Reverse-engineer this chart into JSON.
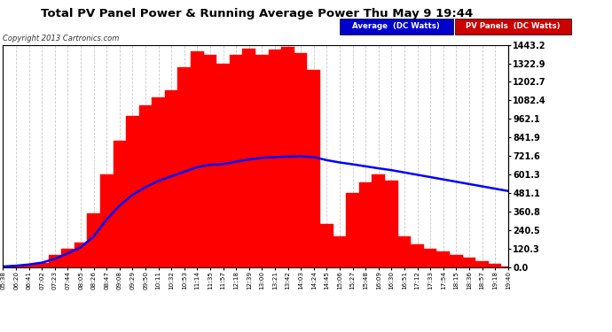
{
  "title": "Total PV Panel Power & Running Average Power Thu May 9 19:44",
  "copyright": "Copyright 2013 Cartronics.com",
  "yticks": [
    0.0,
    120.3,
    240.5,
    360.8,
    481.1,
    601.3,
    721.6,
    841.9,
    962.1,
    1082.4,
    1202.7,
    1322.9,
    1443.2
  ],
  "ymax": 1443.2,
  "bg_color": "#ffffff",
  "grid_color": "#bbbbbb",
  "pv_color": "#ff0000",
  "avg_color": "#0000ff",
  "legend_avg_bg": "#0000cc",
  "legend_pv_bg": "#cc0000",
  "xtick_labels": [
    "05:38",
    "06:20",
    "06:41",
    "07:02",
    "07:23",
    "07:44",
    "08:05",
    "08:26",
    "08:47",
    "09:08",
    "09:29",
    "09:50",
    "10:11",
    "10:32",
    "10:53",
    "11:14",
    "11:35",
    "11:57",
    "12:18",
    "12:39",
    "13:00",
    "13:21",
    "13:42",
    "14:03",
    "14:24",
    "14:45",
    "15:06",
    "15:27",
    "15:48",
    "16:09",
    "16:30",
    "16:51",
    "17:12",
    "17:33",
    "17:54",
    "18:15",
    "18:36",
    "18:57",
    "19:18",
    "19:40"
  ],
  "pv_data": [
    5,
    8,
    15,
    30,
    80,
    120,
    160,
    350,
    600,
    820,
    980,
    1050,
    1100,
    1150,
    1300,
    1400,
    1380,
    1320,
    1380,
    1420,
    1380,
    1410,
    1430,
    1390,
    1280,
    280,
    200,
    480,
    550,
    600,
    560,
    200,
    150,
    120,
    100,
    80,
    60,
    40,
    20,
    5
  ],
  "avg_data": [
    5,
    10,
    18,
    30,
    55,
    90,
    130,
    200,
    310,
    400,
    470,
    520,
    560,
    590,
    620,
    650,
    665,
    670,
    685,
    700,
    710,
    715,
    718,
    720,
    715,
    695,
    680,
    668,
    655,
    642,
    630,
    615,
    600,
    585,
    570,
    555,
    540,
    525,
    510,
    495
  ]
}
